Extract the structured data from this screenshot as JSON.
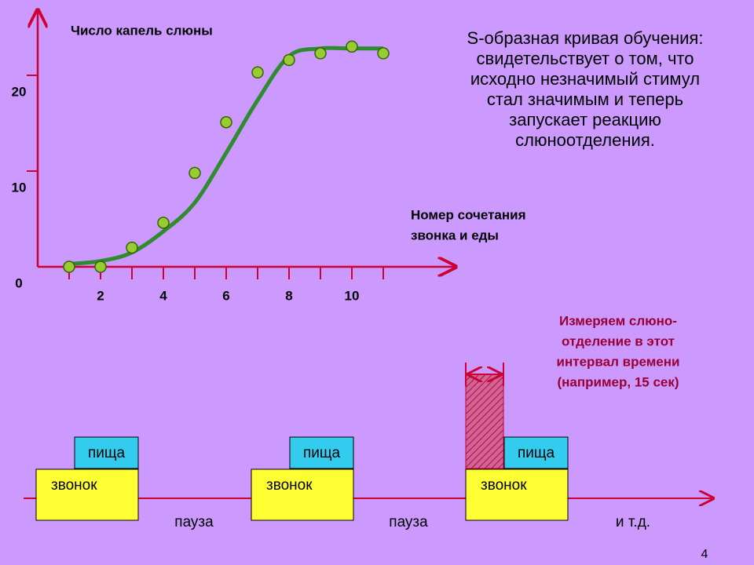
{
  "chart_data": {
    "type": "scatter",
    "title": "Число капель слюны",
    "xlabel": [
      "Номер сочетания",
      "звонка и еды"
    ],
    "x": [
      1,
      2,
      3,
      4,
      5,
      6,
      7,
      8,
      9,
      10,
      11
    ],
    "series": [
      {
        "color": "#99cc33",
        "values": [
          0,
          0,
          2,
          4.6,
          9.8,
          15.1,
          20.3,
          21.6,
          22.3,
          23,
          22.3
        ]
      },
      {
        "color": "#2e8b2e",
        "curve": true,
        "values": [
          0.3,
          0.6,
          1.5,
          3.7,
          6.7,
          11.9,
          17.4,
          22,
          22.8,
          22.8,
          22.8
        ]
      }
    ],
    "xlim": [
      0,
      13.3
    ],
    "ylim": [
      0,
      26.8
    ],
    "xticks": [
      2,
      4,
      6,
      8,
      10
    ],
    "xminorticks": [
      1,
      3,
      5,
      7,
      9,
      11
    ],
    "yticks": [
      0,
      10,
      20
    ]
  },
  "description": [
    "S-образная кривая обучения:",
    "свидетельствует о том, что",
    "исходно незначимый стимул",
    "стал значимым и теперь",
    "запускает реакцию",
    "слюноотделения."
  ],
  "annotation": [
    "Измеряем слюно-",
    "отделение в этот",
    "интервал времени",
    "(например, 15 сек)"
  ],
  "timeline": {
    "blocks": [
      {
        "food": "пища",
        "bell": "звонок"
      },
      {
        "food": "пища",
        "bell": "звонок"
      },
      {
        "food": "пища",
        "bell": "звонок"
      }
    ],
    "gaps": [
      "пауза",
      "пауза",
      "и т.д."
    ]
  },
  "page_number": "4"
}
